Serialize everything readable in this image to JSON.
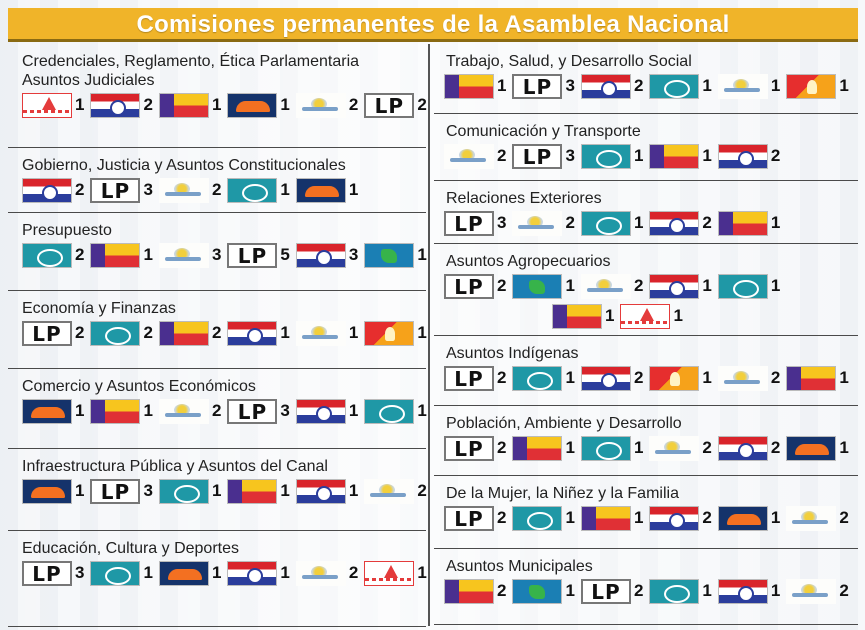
{
  "title": "Comisiones permanentes  de la Asamblea Nacional",
  "left": [
    {
      "key": "credenciales",
      "title_lines": [
        "Credenciales, Reglamento, Ética Parlamentaria",
        "Asuntos Judiciales"
      ],
      "rows": [
        [
          {
            "logo": "avanza",
            "count": "1"
          },
          {
            "logo": "roja",
            "count": "2"
          },
          {
            "logo": "tricolor",
            "count": "1"
          },
          {
            "logo": "navy",
            "count": "1"
          },
          {
            "logo": "sun",
            "count": "2"
          },
          {
            "logo": "lp",
            "count": "2"
          }
        ]
      ]
    },
    {
      "key": "gobierno",
      "title_lines": [
        "Gobierno, Justicia y Asuntos Constitucionales"
      ],
      "rows": [
        [
          {
            "logo": "roja",
            "count": "2"
          },
          {
            "logo": "lp",
            "count": "3"
          },
          {
            "logo": "sun",
            "count": "2"
          },
          {
            "logo": "teal",
            "count": "1"
          },
          {
            "logo": "navy",
            "count": "1"
          }
        ]
      ]
    },
    {
      "key": "presupuesto",
      "title_lines": [
        "Presupuesto"
      ],
      "rows": [
        [
          {
            "logo": "teal",
            "count": "2"
          },
          {
            "logo": "tricolor",
            "count": "1"
          },
          {
            "logo": "sun",
            "count": "3"
          },
          {
            "logo": "lp",
            "count": "5"
          },
          {
            "logo": "roja",
            "count": "3"
          },
          {
            "logo": "green",
            "count": "1"
          }
        ]
      ]
    },
    {
      "key": "economia",
      "title_lines": [
        "Economía y Finanzas"
      ],
      "rows": [
        [
          {
            "logo": "lp",
            "count": "2"
          },
          {
            "logo": "teal",
            "count": "2"
          },
          {
            "logo": "tricolor",
            "count": "2"
          },
          {
            "logo": "roja",
            "count": "1"
          },
          {
            "logo": "sun",
            "count": "1"
          },
          {
            "logo": "fire",
            "count": "1"
          }
        ]
      ]
    },
    {
      "key": "comercio",
      "title_lines": [
        "Comercio y Asuntos Económicos"
      ],
      "rows": [
        [
          {
            "logo": "navy",
            "count": "1"
          },
          {
            "logo": "tricolor",
            "count": "1"
          },
          {
            "logo": "sun",
            "count": "2"
          },
          {
            "logo": "lp",
            "count": "3"
          },
          {
            "logo": "roja",
            "count": "1"
          },
          {
            "logo": "teal",
            "count": "1"
          }
        ]
      ]
    },
    {
      "key": "infraestructura",
      "title_lines": [
        "Infraestructura Pública y Asuntos del Canal"
      ],
      "rows": [
        [
          {
            "logo": "navy",
            "count": "1"
          },
          {
            "logo": "lp",
            "count": "3"
          },
          {
            "logo": "teal",
            "count": "1"
          },
          {
            "logo": "tricolor",
            "count": "1"
          },
          {
            "logo": "roja",
            "count": "1"
          },
          {
            "logo": "sun",
            "count": "2"
          }
        ]
      ]
    },
    {
      "key": "educacion",
      "title_lines": [
        "Educación, Cultura y Deportes"
      ],
      "rows": [
        [
          {
            "logo": "lp",
            "count": "3"
          },
          {
            "logo": "teal",
            "count": "1"
          },
          {
            "logo": "navy",
            "count": "1"
          },
          {
            "logo": "roja",
            "count": "1"
          },
          {
            "logo": "sun",
            "count": "2"
          },
          {
            "logo": "avanza",
            "count": "1"
          }
        ]
      ]
    }
  ],
  "right": [
    {
      "key": "trabajo",
      "title_lines": [
        "Trabajo, Salud, y Desarrollo Social"
      ],
      "rows": [
        [
          {
            "logo": "tricolor",
            "count": "1"
          },
          {
            "logo": "lp",
            "count": "3"
          },
          {
            "logo": "roja",
            "count": "2"
          },
          {
            "logo": "teal",
            "count": "1"
          },
          {
            "logo": "sun",
            "count": "1"
          },
          {
            "logo": "fire",
            "count": "1"
          }
        ]
      ]
    },
    {
      "key": "comunicacion",
      "title_lines": [
        "Comunicación y Transporte"
      ],
      "rows": [
        [
          {
            "logo": "sun",
            "count": "2"
          },
          {
            "logo": "lp",
            "count": "3"
          },
          {
            "logo": "teal",
            "count": "1"
          },
          {
            "logo": "tricolor",
            "count": "1"
          },
          {
            "logo": "roja",
            "count": "2"
          }
        ]
      ]
    },
    {
      "key": "relaciones",
      "title_lines": [
        "Relaciones Exteriores"
      ],
      "rows": [
        [
          {
            "logo": "lp",
            "count": "3"
          },
          {
            "logo": "sun",
            "count": "2"
          },
          {
            "logo": "teal",
            "count": "1"
          },
          {
            "logo": "roja",
            "count": "2"
          },
          {
            "logo": "tricolor",
            "count": "1"
          }
        ]
      ]
    },
    {
      "key": "agropecuarios",
      "title_lines": [
        "Asuntos Agropecuarios"
      ],
      "rows": [
        [
          {
            "logo": "lp",
            "count": "2"
          },
          {
            "logo": "green",
            "count": "1"
          },
          {
            "logo": "sun",
            "count": "2"
          },
          {
            "logo": "roja",
            "count": "1"
          },
          {
            "logo": "teal",
            "count": "1"
          }
        ],
        [
          {
            "logo": "tricolor",
            "count": "1"
          },
          {
            "logo": "avanza",
            "count": "1"
          }
        ]
      ]
    },
    {
      "key": "indigenas",
      "title_lines": [
        "Asuntos Indígenas"
      ],
      "rows": [
        [
          {
            "logo": "lp",
            "count": "2"
          },
          {
            "logo": "teal",
            "count": "1"
          },
          {
            "logo": "roja",
            "count": "2"
          },
          {
            "logo": "fire",
            "count": "1"
          },
          {
            "logo": "sun",
            "count": "2"
          },
          {
            "logo": "tricolor",
            "count": "1"
          }
        ]
      ]
    },
    {
      "key": "poblacion",
      "title_lines": [
        "Población, Ambiente y Desarrollo"
      ],
      "rows": [
        [
          {
            "logo": "lp",
            "count": "2"
          },
          {
            "logo": "tricolor",
            "count": "1"
          },
          {
            "logo": "teal",
            "count": "1"
          },
          {
            "logo": "sun",
            "count": "2"
          },
          {
            "logo": "roja",
            "count": "2"
          },
          {
            "logo": "navy",
            "count": "1"
          }
        ]
      ]
    },
    {
      "key": "mujer",
      "title_lines": [
        "De la Mujer, la Niñez y la Familia"
      ],
      "rows": [
        [
          {
            "logo": "lp",
            "count": "2"
          },
          {
            "logo": "teal",
            "count": "1"
          },
          {
            "logo": "tricolor",
            "count": "1"
          },
          {
            "logo": "roja",
            "count": "2"
          },
          {
            "logo": "navy",
            "count": "1"
          },
          {
            "logo": "sun",
            "count": "2"
          }
        ]
      ]
    },
    {
      "key": "municipales",
      "title_lines": [
        "Asuntos Municipales"
      ],
      "rows": [
        [
          {
            "logo": "tricolor",
            "count": "2"
          },
          {
            "logo": "green",
            "count": "1"
          },
          {
            "logo": "lp",
            "count": "2"
          },
          {
            "logo": "teal",
            "count": "1"
          },
          {
            "logo": "roja",
            "count": "1"
          },
          {
            "logo": "sun",
            "count": "2"
          }
        ]
      ]
    }
  ],
  "logo_text": {
    "lp": "LP"
  },
  "colors": {
    "header_bg": "#f0b429",
    "roja_red": "#d9242b",
    "roja_blue": "#2b3d9c",
    "teal": "#1f98a6",
    "navy": "#15336b",
    "orange": "#f37021"
  }
}
